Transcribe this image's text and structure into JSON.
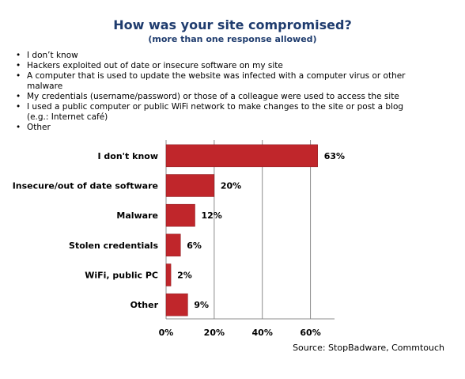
{
  "title": "How was your site compromised?",
  "subtitle": "(more than one response allowed)",
  "bullets": [
    "I don’t know",
    "Hackers exploited out of date or insecure software on my site",
    "A computer that is used to update the website was infected with a computer virus or other malware",
    "My credentials (username/password) or those of a colleague were used to access the site",
    "I used a public computer or public WiFi network to make changes to the site or post a blog (e.g.: Internet café)",
    "Other"
  ],
  "source": "Source: StopBadware, Commtouch",
  "chart_data": {
    "type": "bar",
    "orientation": "horizontal",
    "categories": [
      "I don't know",
      "Insecure/out of date software",
      "Malware",
      "Stolen credentials",
      "WiFi, public PC",
      "Other"
    ],
    "values": [
      63,
      20,
      12,
      6,
      2,
      9
    ],
    "value_labels": [
      "63%",
      "20%",
      "12%",
      "6%",
      "2%",
      "9%"
    ],
    "xlim": [
      0,
      70
    ],
    "ticks": [
      0,
      20,
      40,
      60
    ],
    "tick_labels": [
      "0%",
      "20%",
      "40%",
      "60%"
    ],
    "grid": true,
    "bar_color": "#c0262b",
    "title": "",
    "xlabel": "",
    "ylabel": ""
  }
}
